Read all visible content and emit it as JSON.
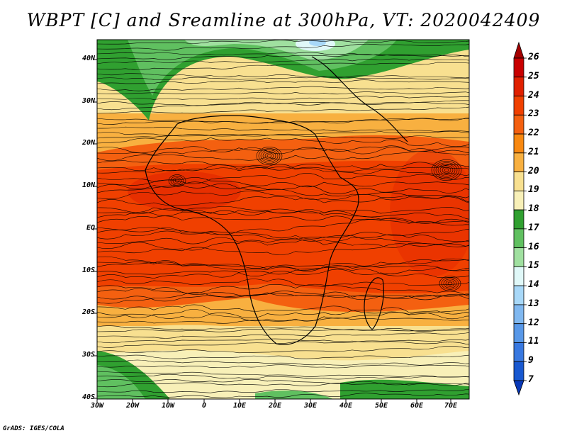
{
  "title": "WBPT [C] and Sreamline at 300hPa, VT: 2020042409",
  "lat_labels": [
    "40N",
    "30N",
    "20N",
    "10N",
    "EQ",
    "10S",
    "20S",
    "30S",
    "40S"
  ],
  "lon_labels": [
    "30W",
    "20W",
    "10W",
    "0",
    "10E",
    "20E",
    "30E",
    "40E",
    "50E",
    "60E",
    "70E"
  ],
  "colorbar": {
    "labels": [
      "26",
      "25",
      "24",
      "23",
      "22",
      "21",
      "20",
      "19",
      "18",
      "17",
      "16",
      "15",
      "14",
      "13",
      "12",
      "11",
      "9",
      "7"
    ],
    "colors": [
      "#a50000",
      "#c80000",
      "#e02000",
      "#f04000",
      "#f46010",
      "#f88810",
      "#f8b040",
      "#f8e090",
      "#f8f0b8",
      "#30a030",
      "#60c060",
      "#a0e0a0",
      "#e0f8f8",
      "#a8d8f8",
      "#80b8f0",
      "#5898e8",
      "#3878e0",
      "#1858d0",
      "#0838b8"
    ]
  },
  "credit": "GrADS: IGES/COLA"
}
